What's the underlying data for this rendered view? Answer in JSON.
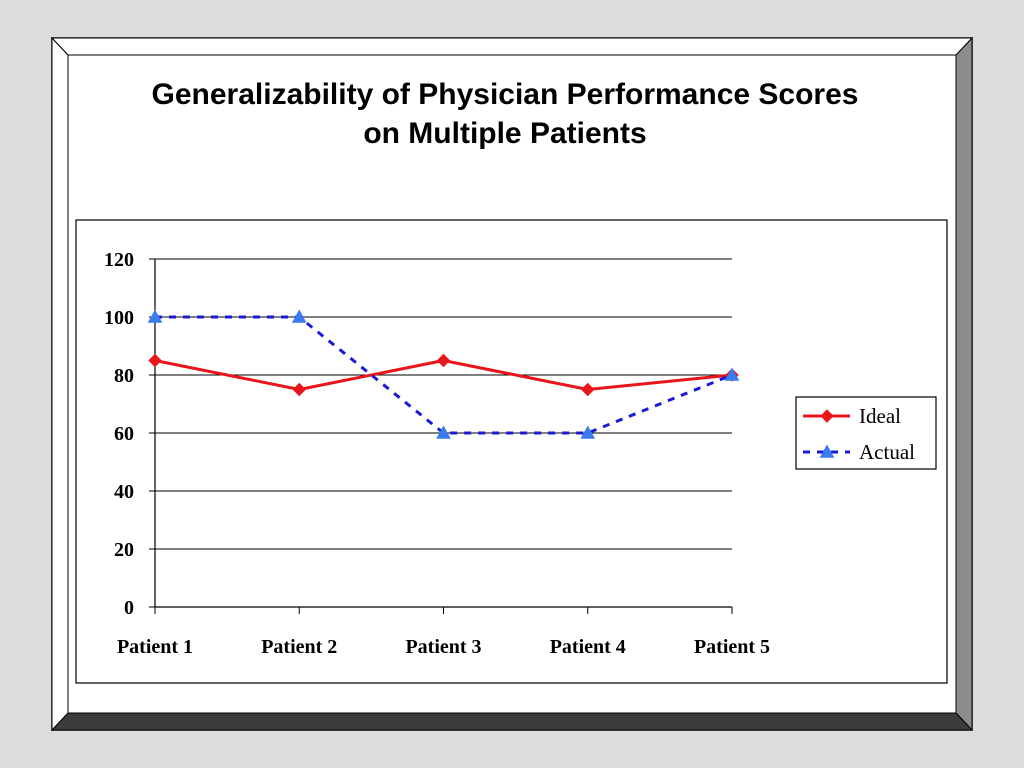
{
  "chart_data": {
    "type": "line",
    "title": [
      "Generalizability of Physician Performance Scores",
      "on Multiple Patients"
    ],
    "xlabel": "",
    "ylabel": "",
    "categories": [
      "Patient 1",
      "Patient 2",
      "Patient 3",
      "Patient 4",
      "Patient 5"
    ],
    "ylim": [
      0,
      120
    ],
    "yticks": [
      "0",
      "20",
      "40",
      "60",
      "80",
      "100",
      "120"
    ],
    "grid": true,
    "legend_position": "right",
    "series": [
      {
        "name": "Ideal",
        "values": [
          85,
          75,
          85,
          75,
          80
        ],
        "color": "#e8161b",
        "marker": "diamond",
        "line": "solid"
      },
      {
        "name": "Actual",
        "values": [
          100,
          100,
          60,
          60,
          80
        ],
        "color": "#1b1bd6",
        "marker_color": "#3a7bf0",
        "marker": "triangle",
        "line": "dashed"
      }
    ]
  }
}
